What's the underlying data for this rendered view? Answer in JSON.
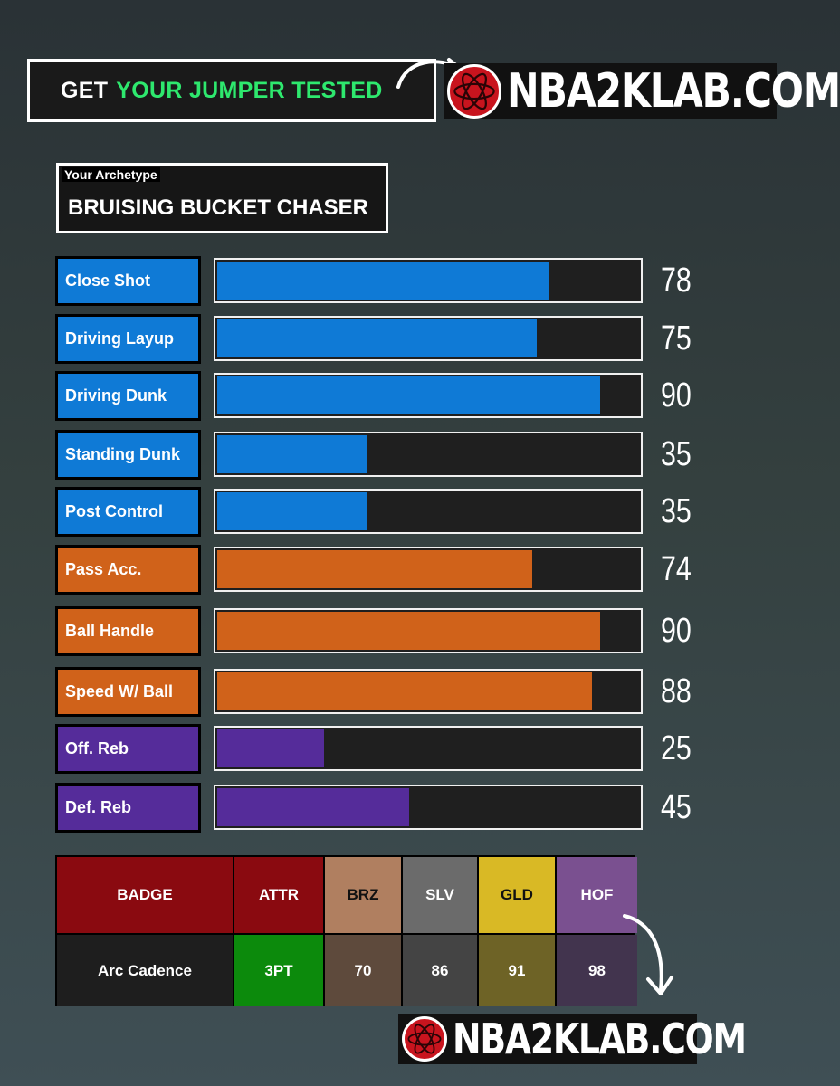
{
  "header": {
    "cta_white": "GET",
    "cta_green": "YOUR JUMPER TESTED",
    "site": "NBA2KLAB.COM"
  },
  "archetype": {
    "label": "Your Archetype",
    "name": "BRUISING BUCKET CHASER"
  },
  "attributes": [
    {
      "name": "Close Shot",
      "value": "78",
      "color": "#0f7ad6"
    },
    {
      "name": "Driving Layup",
      "value": "75",
      "color": "#0f7ad6"
    },
    {
      "name": "Driving Dunk",
      "value": "90",
      "color": "#0f7ad6"
    },
    {
      "name": "Standing Dunk",
      "value": "35",
      "color": "#0f7ad6"
    },
    {
      "name": "Post Control",
      "value": "35",
      "color": "#0f7ad6"
    },
    {
      "name": "Pass Acc.",
      "value": "74",
      "color": "#d0621a"
    },
    {
      "name": "Ball Handle",
      "value": "90",
      "color": "#d0621a"
    },
    {
      "name": "Speed W/ Ball",
      "value": "88",
      "color": "#d0621a"
    },
    {
      "name": "Off. Reb",
      "value": "25",
      "color": "#552c9a"
    },
    {
      "name": "Def. Reb",
      "value": "45",
      "color": "#552c9a"
    }
  ],
  "badge_table": {
    "headers": [
      "BADGE",
      "ATTR",
      "BRZ",
      "SLV",
      "GLD",
      "HOF"
    ],
    "row": [
      "Arc Cadence",
      "3PT",
      "70",
      "86",
      "91",
      "98"
    ],
    "header_colors": [
      "#8a0a10",
      "#8a0a10",
      "#b07f60",
      "#6b6b6b",
      "#d9b925",
      "#7a5090"
    ],
    "row_colors": [
      "#1e1e1e",
      "#0c8a0c",
      "#5e4a3c",
      "#444444",
      "#6e6326",
      "#42344e"
    ]
  },
  "footer": {
    "site": "NBA2KLAB.COM"
  }
}
